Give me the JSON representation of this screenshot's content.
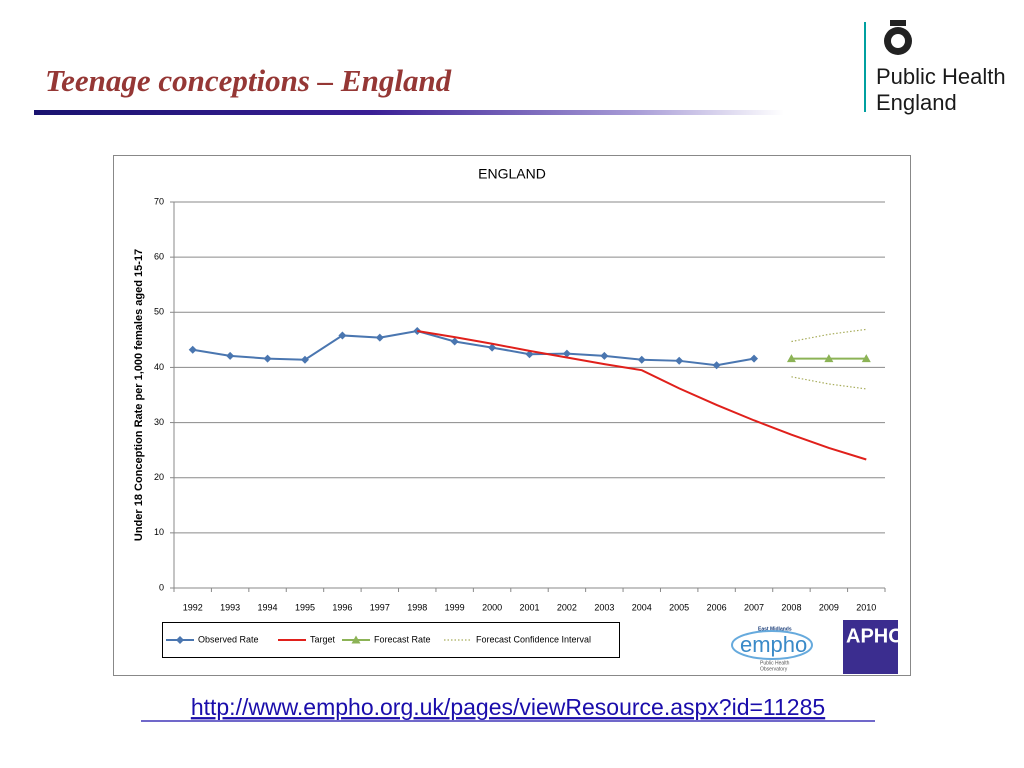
{
  "slide": {
    "title": "Teenage conceptions – England",
    "brand": [
      "Public Health",
      "England"
    ],
    "url": "http://www.empho.org.uk/pages/viewResource.aspx?id=11285"
  },
  "logos": {
    "empho_region": "East Midlands",
    "empho": "empho",
    "empho_sub": [
      "Public Health",
      "Observatory"
    ],
    "apho": "APHO"
  },
  "chart_data": {
    "type": "line",
    "title": "ENGLAND",
    "y_label": "Under 18 Conception Rate per 1,000 females aged 15-17",
    "categories": [
      "1992",
      "1993",
      "1994",
      "1995",
      "1996",
      "1997",
      "1998",
      "1999",
      "2000",
      "2001",
      "2002",
      "2003",
      "2004",
      "2005",
      "2006",
      "2007",
      "2008",
      "2009",
      "2010"
    ],
    "ylim": [
      0,
      70
    ],
    "yticks": [
      0,
      10,
      20,
      30,
      40,
      50,
      60,
      70
    ],
    "grid": true,
    "legend": "bottom-left",
    "series": [
      {
        "name": "Observed Rate",
        "color": "#4a76b0",
        "marker": "diamond",
        "values": [
          43.2,
          42.1,
          41.6,
          41.4,
          45.8,
          45.4,
          46.6,
          44.7,
          43.6,
          42.4,
          42.5,
          42.1,
          41.4,
          41.2,
          40.4,
          41.6,
          null,
          null,
          null
        ]
      },
      {
        "name": "Target",
        "color": "#e0201b",
        "values": [
          null,
          null,
          null,
          null,
          null,
          null,
          46.6,
          45.5,
          44.3,
          43.0,
          41.8,
          40.6,
          39.5,
          36.2,
          33.2,
          30.4,
          27.8,
          25.4,
          23.3
        ]
      },
      {
        "name": "Forecast Rate",
        "color": "#8cb356",
        "marker": "triangle",
        "values": [
          null,
          null,
          null,
          null,
          null,
          null,
          null,
          null,
          null,
          null,
          null,
          null,
          null,
          null,
          null,
          null,
          41.6,
          41.6,
          41.6
        ]
      },
      {
        "name": "Forecast Confidence Interval",
        "color": "#a8ad5c",
        "dash": true,
        "values": [
          null,
          null,
          null,
          null,
          null,
          null,
          null,
          null,
          null,
          null,
          null,
          null,
          null,
          null,
          null,
          null,
          44.7,
          46.0,
          46.9
        ],
        "lower": [
          null,
          null,
          null,
          null,
          null,
          null,
          null,
          null,
          null,
          null,
          null,
          null,
          null,
          null,
          null,
          null,
          38.3,
          37.0,
          36.1
        ]
      }
    ]
  }
}
